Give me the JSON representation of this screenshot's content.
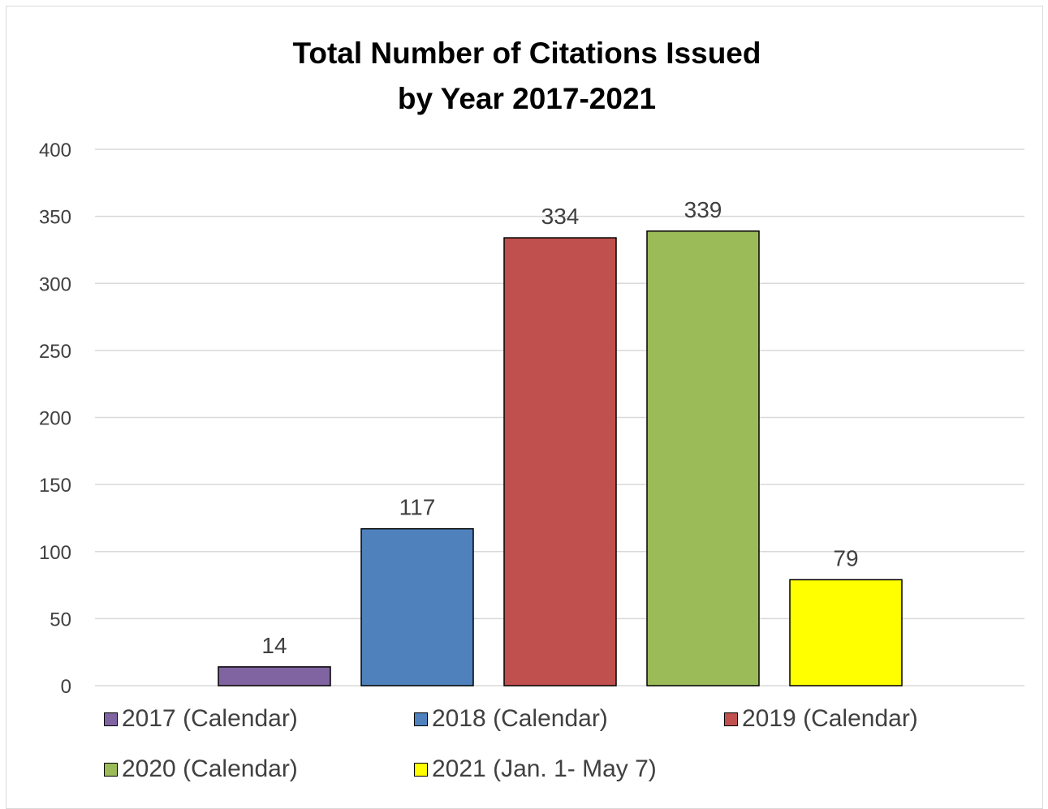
{
  "chart_data": {
    "type": "bar",
    "title_lines": [
      "Total Number of Citations Issued",
      "by Year 2017-2021"
    ],
    "xlabel": "",
    "ylabel": "",
    "ylim": [
      0,
      400
    ],
    "y_ticks": [
      "0",
      "50",
      "100",
      "150",
      "200",
      "250",
      "300",
      "350",
      "400"
    ],
    "y_tick_values": [
      0,
      50,
      100,
      150,
      200,
      250,
      300,
      350,
      400
    ],
    "grid": true,
    "legend_position": "bottom",
    "series": [
      {
        "name": "2017 (Calendar)",
        "value": 14,
        "label": "14",
        "color": "#8064a2"
      },
      {
        "name": "2018 (Calendar)",
        "value": 117,
        "label": "117",
        "color": "#4f81bd"
      },
      {
        "name": "2019 (Calendar)",
        "value": 334,
        "label": "334",
        "color": "#c0504d"
      },
      {
        "name": "2020 (Calendar)",
        "value": 339,
        "label": "339",
        "color": "#9bbb59"
      },
      {
        "name": "2021 (Jan. 1- May 7)",
        "value": 79,
        "label": "79",
        "color": "#ffff00"
      }
    ]
  }
}
